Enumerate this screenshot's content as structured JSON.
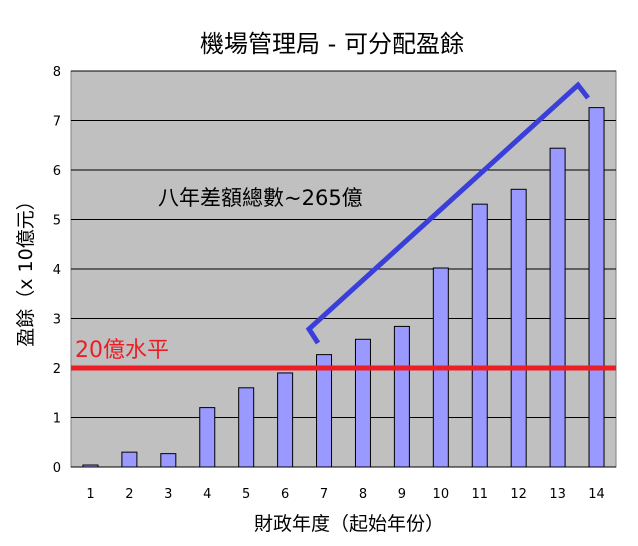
{
  "chart_data": {
    "type": "bar",
    "title": "機場管理局 - 可分配盈餘",
    "xlabel": "財政年度（起始年份）",
    "ylabel": "盈餘（x 10億元）",
    "categories": [
      "1",
      "2",
      "3",
      "4",
      "5",
      "6",
      "7",
      "8",
      "9",
      "10",
      "11",
      "12",
      "13",
      "14"
    ],
    "values": [
      0.04,
      0.3,
      0.27,
      1.2,
      1.6,
      1.9,
      2.27,
      2.58,
      2.84,
      4.02,
      5.31,
      5.61,
      6.44,
      7.26
    ],
    "ylim": [
      0,
      8
    ],
    "yticks": [
      "0",
      "1",
      "2",
      "3",
      "4",
      "5",
      "6",
      "7",
      "8"
    ],
    "grid": true,
    "reference_line": {
      "value": 2,
      "label": "20億水平",
      "color": "#ee1c24"
    },
    "annotation": {
      "text": "八年差額總數~265億",
      "color": "#3a3fd9"
    },
    "bar_color": "#9999ff",
    "plot_background": "#c0c0c0"
  }
}
